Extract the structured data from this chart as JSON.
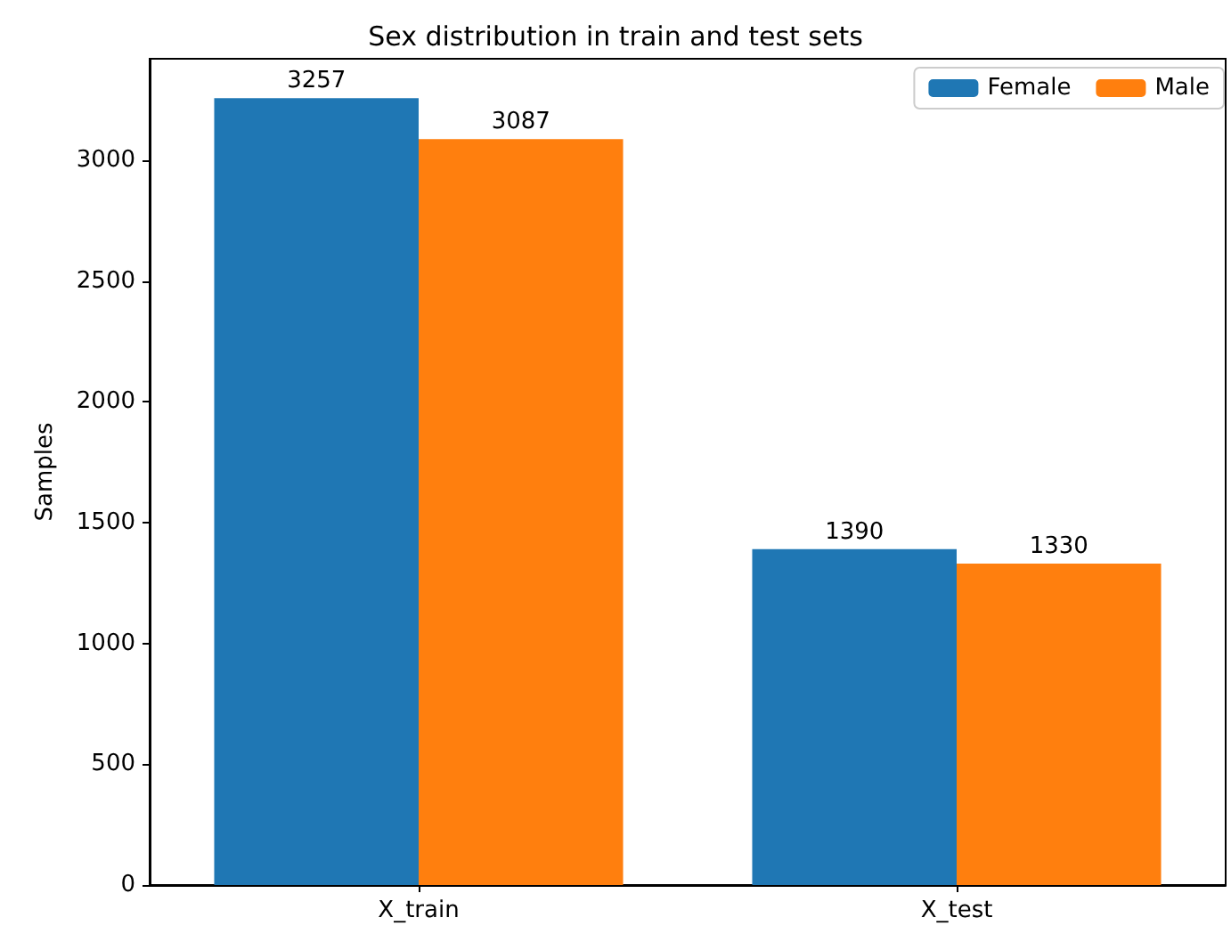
{
  "chart_data": {
    "type": "bar",
    "title": "Sex distribution in train and test sets",
    "ylabel": "Samples",
    "categories": [
      "X_train",
      "X_test"
    ],
    "series": [
      {
        "name": "Female",
        "color": "#1f77b4",
        "values": [
          3257,
          1390
        ]
      },
      {
        "name": "Male",
        "color": "#ff7f0e",
        "values": [
          3087,
          1330
        ]
      }
    ],
    "ylim": [
      0,
      3420
    ],
    "yticks": [
      0,
      500,
      1000,
      1500,
      2000,
      2500,
      3000
    ],
    "data_labels": true,
    "legend": "top right",
    "grid": false
  }
}
